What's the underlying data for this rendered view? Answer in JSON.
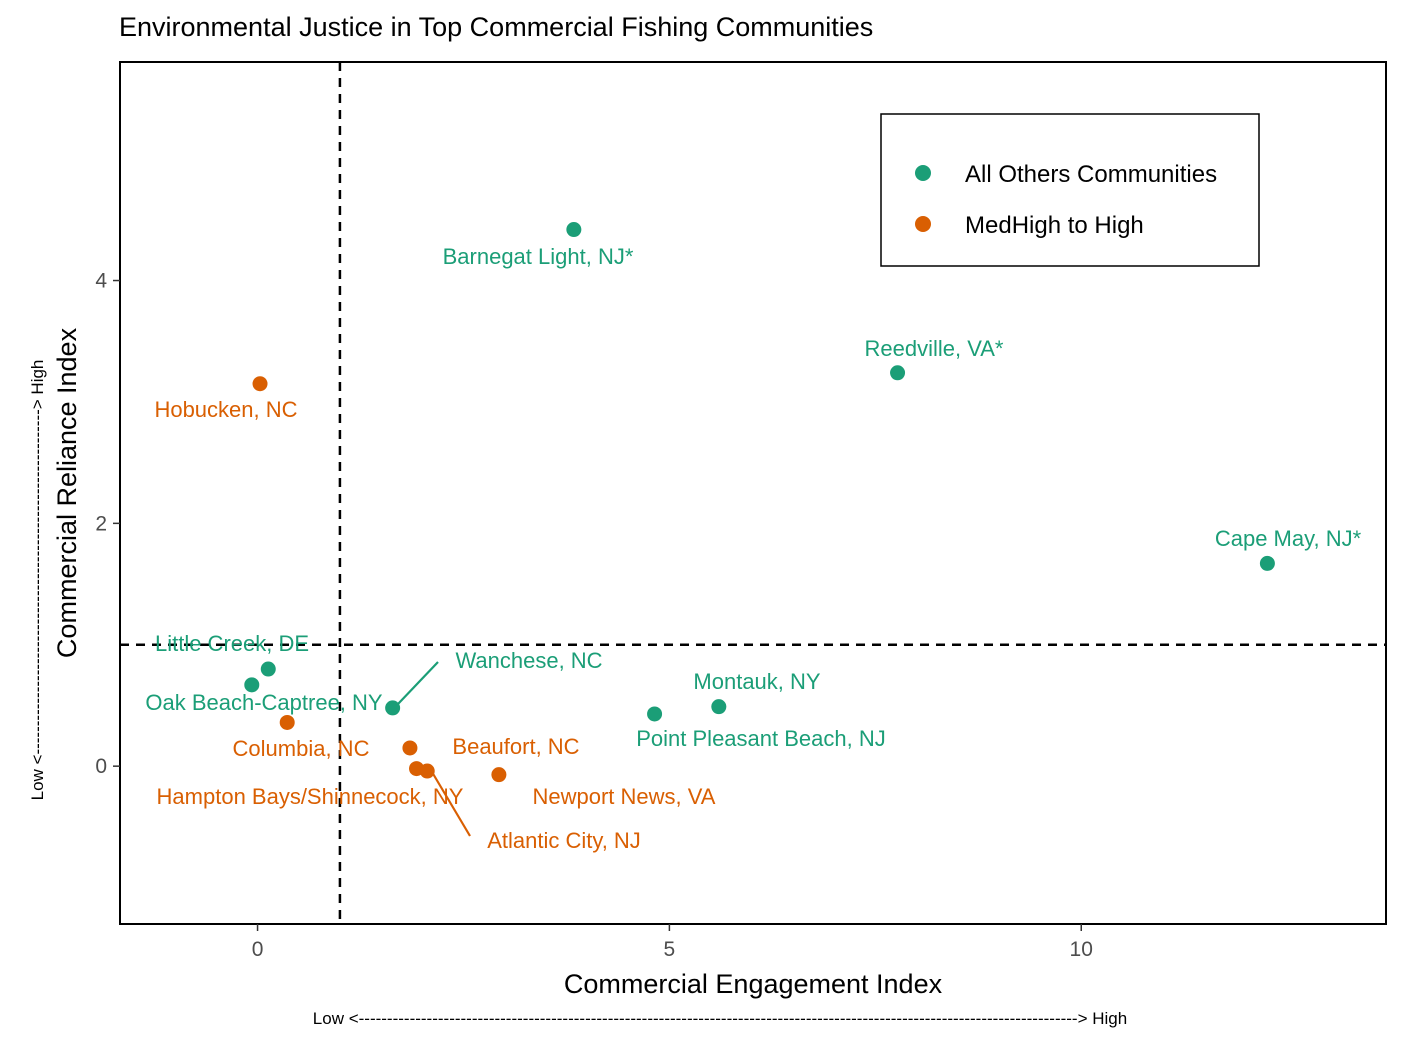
{
  "chart_data": {
    "type": "scatter",
    "title": "Environmental Justice in Top Commercial Fishing Communities",
    "xlabel": "Commercial Engagement Index",
    "ylabel": "Commercial Reliance Index",
    "x_arrow": "Low <-------------------------------------------------------------------------------------------------------------------------------> High",
    "y_arrow": "Low <-------------------------------------------------------------> High",
    "xlim": [
      -1.67,
      13.7
    ],
    "ylim": [
      -1.3,
      5.8
    ],
    "x_ticks": [
      0,
      5,
      10
    ],
    "x_tick_labels": [
      "0",
      "5",
      "10"
    ],
    "y_ticks": [
      0,
      2,
      4
    ],
    "y_tick_labels": [
      "0",
      "2",
      "4"
    ],
    "grid": false,
    "reference_lines": {
      "x": 1,
      "y": 1,
      "style": "dashed"
    },
    "legend_position": "top-right",
    "colors": {
      "others": "#1b9e77",
      "high": "#d95f02"
    },
    "series": [
      {
        "name": "All Others Communities",
        "color": "#1b9e77",
        "points": [
          {
            "label": "Barnegat Light, NJ*",
            "x": 3.84,
            "y": 4.42
          },
          {
            "label": "Reedville, VA*",
            "x": 7.77,
            "y": 3.24
          },
          {
            "label": "Cape May, NJ*",
            "x": 12.26,
            "y": 1.67
          },
          {
            "label": "Little Creek, DE",
            "x": 0.13,
            "y": 0.8
          },
          {
            "label": "Oak Beach-Captree, NY",
            "x": -0.07,
            "y": 0.67
          },
          {
            "label": "Wanchese, NC",
            "x": 1.64,
            "y": 0.48
          },
          {
            "label": "Montauk, NY",
            "x": 5.6,
            "y": 0.49
          },
          {
            "label": "Point Pleasant Beach, NJ",
            "x": 4.82,
            "y": 0.43
          }
        ]
      },
      {
        "name": "MedHigh to High",
        "color": "#d95f02",
        "points": [
          {
            "label": "Hobucken, NC",
            "x": 0.03,
            "y": 3.15
          },
          {
            "label": "Columbia, NC",
            "x": 0.36,
            "y": 0.36
          },
          {
            "label": "Beaufort, NC",
            "x": 1.85,
            "y": 0.15
          },
          {
            "label": "Hampton Bays/Shinnecock, NY",
            "x": 1.93,
            "y": -0.02
          },
          {
            "label": "Atlantic City, NJ",
            "x": 2.06,
            "y": -0.04
          },
          {
            "label": "Newport News, VA",
            "x": 2.93,
            "y": -0.07
          }
        ]
      }
    ]
  }
}
